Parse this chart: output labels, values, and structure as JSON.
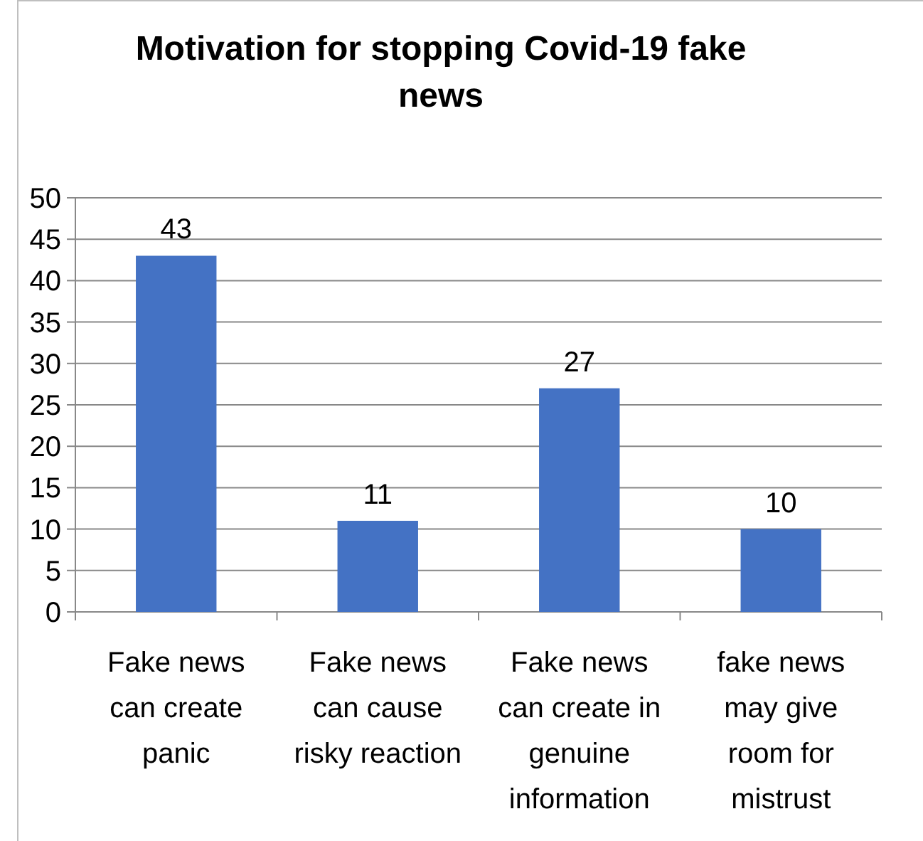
{
  "chart_data": {
    "type": "bar",
    "title": "Motivation for stopping Covid-19 fake news",
    "categories": [
      "Fake news can create panic",
      "Fake news can cause risky reaction",
      "Fake news can create in genuine information",
      "fake news may give room for mistrust"
    ],
    "values": [
      43,
      11,
      27,
      10
    ],
    "color": "#4472c4",
    "data_labels": true,
    "grid": "y",
    "ylim": [
      0,
      50
    ],
    "yticks": [
      0,
      5,
      10,
      15,
      20,
      25,
      30,
      35,
      40,
      45,
      50
    ]
  }
}
